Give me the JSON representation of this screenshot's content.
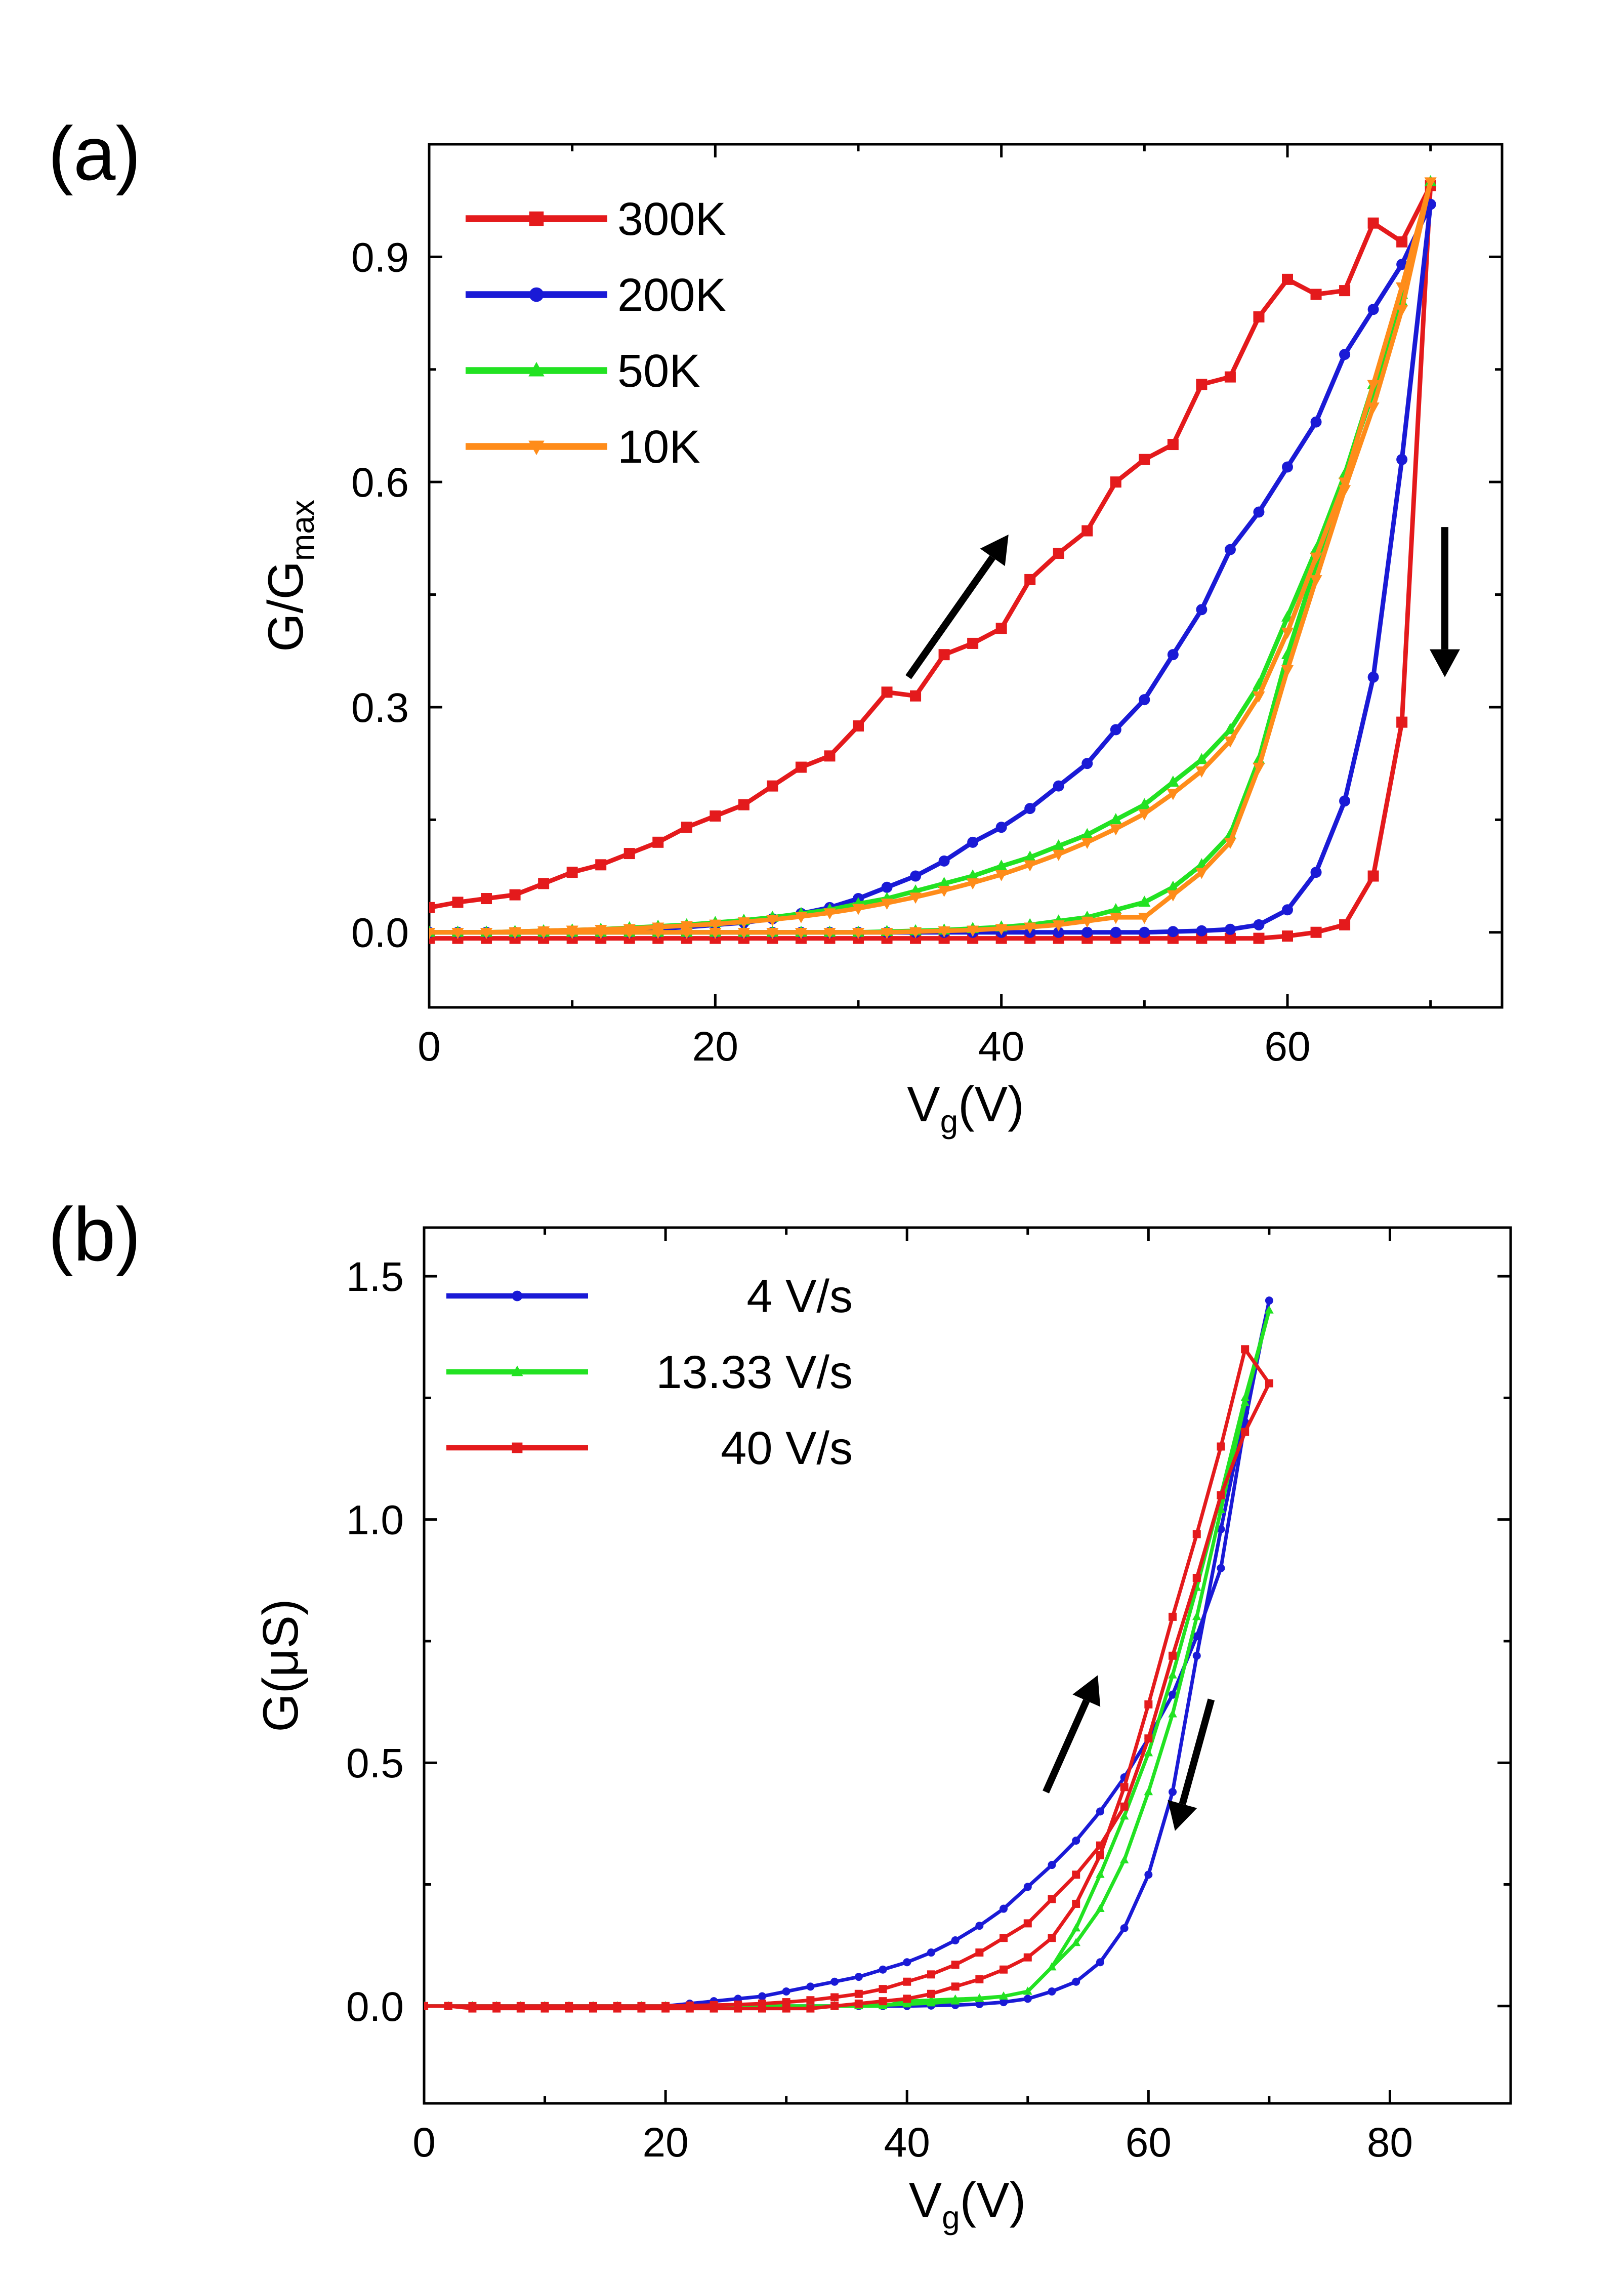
{
  "chart_data": [
    {
      "panel_label": "(a)",
      "type": "line",
      "xlabel": "V",
      "xlabel_sub": "g",
      "xlabel_suffix": "(V)",
      "ylabel": "G/G",
      "ylabel_sub": "max",
      "xlim": [
        0,
        75
      ],
      "ylim": [
        -0.1,
        1.05
      ],
      "xticks": [
        0,
        20,
        40,
        60
      ],
      "xtick_labels": [
        "0",
        "20",
        "40",
        "60"
      ],
      "yticks": [
        0.0,
        0.3,
        0.6,
        0.9
      ],
      "ytick_labels": [
        "0.0",
        "0.3",
        "0.6",
        "0.9"
      ],
      "legend_position": "top-left",
      "annotations": [
        "up-right arrow (forward sweep)",
        "down arrow (reverse sweep)"
      ],
      "series": [
        {
          "name": "300K",
          "color": "#e41a1c",
          "marker": "square",
          "x": [
            0,
            2,
            4,
            6,
            8,
            10,
            12,
            14,
            16,
            18,
            20,
            22,
            24,
            26,
            28,
            30,
            32,
            34,
            36,
            38,
            40,
            42,
            44,
            46,
            48,
            50,
            52,
            54,
            56,
            58,
            60,
            62,
            64,
            66,
            68,
            70,
            68,
            66,
            64,
            62,
            60,
            58,
            56,
            54,
            52,
            50,
            48,
            46,
            44,
            42,
            40,
            38,
            36,
            34,
            32,
            30,
            28,
            26,
            24,
            22,
            20,
            18,
            16,
            14,
            12,
            10,
            8,
            6,
            4,
            2,
            0
          ],
          "y": [
            0.033,
            0.04,
            0.045,
            0.05,
            0.065,
            0.08,
            0.09,
            0.105,
            0.12,
            0.14,
            0.155,
            0.17,
            0.195,
            0.22,
            0.235,
            0.275,
            0.32,
            0.315,
            0.37,
            0.385,
            0.405,
            0.47,
            0.505,
            0.535,
            0.6,
            0.63,
            0.65,
            0.73,
            0.74,
            0.82,
            0.87,
            0.85,
            0.855,
            0.945,
            0.92,
            0.995,
            0.28,
            0.075,
            0.01,
            0.0,
            -0.005,
            -0.008,
            -0.008,
            -0.008,
            -0.008,
            -0.008,
            -0.008,
            -0.008,
            -0.008,
            -0.008,
            -0.008,
            -0.008,
            -0.008,
            -0.008,
            -0.008,
            -0.008,
            -0.008,
            -0.008,
            -0.008,
            -0.008,
            -0.008,
            -0.008,
            -0.008,
            -0.008,
            -0.008,
            -0.008,
            -0.008,
            -0.008,
            -0.008,
            -0.008,
            -0.008
          ]
        },
        {
          "name": "200K",
          "color": "#1a1ad6",
          "marker": "circle",
          "x": [
            0,
            2,
            4,
            6,
            8,
            10,
            12,
            14,
            16,
            18,
            20,
            22,
            24,
            26,
            28,
            30,
            32,
            34,
            36,
            38,
            40,
            42,
            44,
            46,
            48,
            50,
            52,
            54,
            56,
            58,
            60,
            62,
            64,
            66,
            68,
            70,
            68,
            66,
            64,
            62,
            60,
            58,
            56,
            54,
            52,
            50,
            48,
            46,
            44,
            42,
            40,
            38,
            36,
            34,
            32,
            30,
            28,
            26,
            24,
            22,
            20,
            18,
            16,
            14,
            12,
            10,
            8,
            6,
            4,
            2,
            0
          ],
          "y": [
            0.0,
            0.0,
            0.0,
            0.0,
            0.0,
            0.001,
            0.002,
            0.003,
            0.005,
            0.007,
            0.01,
            0.013,
            0.018,
            0.025,
            0.033,
            0.045,
            0.06,
            0.075,
            0.095,
            0.12,
            0.14,
            0.165,
            0.195,
            0.225,
            0.27,
            0.31,
            0.37,
            0.43,
            0.51,
            0.56,
            0.62,
            0.68,
            0.77,
            0.83,
            0.89,
            0.97,
            0.63,
            0.34,
            0.175,
            0.08,
            0.03,
            0.01,
            0.004,
            0.002,
            0.001,
            0.0,
            0.0,
            0.0,
            0.0,
            0.0,
            0.0,
            0.0,
            0.0,
            0.0,
            0.0,
            0.0,
            0.0,
            0.0,
            0.0,
            0.0,
            0.0,
            0.0,
            0.0,
            0.0,
            0.0,
            0.0,
            0.0,
            0.0,
            0.0,
            0.0,
            0.0
          ]
        },
        {
          "name": "50K",
          "color": "#22e222",
          "marker": "triangle-up",
          "x": [
            0,
            2,
            4,
            6,
            8,
            10,
            12,
            14,
            16,
            18,
            20,
            22,
            24,
            26,
            28,
            30,
            32,
            34,
            36,
            38,
            40,
            42,
            44,
            46,
            48,
            50,
            52,
            54,
            56,
            58,
            60,
            62,
            64,
            66,
            68,
            70,
            68,
            66,
            64,
            62,
            60,
            58,
            56,
            54,
            52,
            50,
            48,
            46,
            44,
            42,
            40,
            38,
            36,
            34,
            32,
            30,
            28,
            26,
            24,
            22,
            20,
            18,
            16,
            14,
            12,
            10,
            8,
            6,
            4,
            2,
            0
          ],
          "y": [
            0.0,
            0.0,
            0.0,
            0.001,
            0.002,
            0.003,
            0.004,
            0.006,
            0.008,
            0.01,
            0.013,
            0.016,
            0.02,
            0.025,
            0.03,
            0.038,
            0.045,
            0.055,
            0.065,
            0.075,
            0.088,
            0.1,
            0.115,
            0.13,
            0.15,
            0.17,
            0.2,
            0.23,
            0.27,
            0.33,
            0.42,
            0.51,
            0.61,
            0.73,
            0.85,
            1.0,
            0.84,
            0.72,
            0.61,
            0.49,
            0.37,
            0.23,
            0.13,
            0.09,
            0.06,
            0.04,
            0.03,
            0.02,
            0.015,
            0.01,
            0.007,
            0.005,
            0.003,
            0.002,
            0.001,
            0.0,
            0.0,
            0.0,
            0.0,
            0.0,
            0.0,
            0.0,
            0.0,
            0.0,
            0.0,
            0.0,
            0.0,
            0.0,
            0.0,
            0.0,
            0.0
          ]
        },
        {
          "name": "10K",
          "color": "#ff8c1a",
          "marker": "triangle-down",
          "x": [
            0,
            2,
            4,
            6,
            8,
            10,
            12,
            14,
            16,
            18,
            20,
            22,
            24,
            26,
            28,
            30,
            32,
            34,
            36,
            38,
            40,
            42,
            44,
            46,
            48,
            50,
            52,
            54,
            56,
            58,
            60,
            62,
            64,
            66,
            68,
            70,
            68,
            66,
            64,
            62,
            60,
            58,
            56,
            54,
            52,
            50,
            48,
            46,
            44,
            42,
            40,
            38,
            36,
            34,
            32,
            30,
            28,
            26,
            24,
            22,
            20,
            18,
            16,
            14,
            12,
            10,
            8,
            6,
            4,
            2,
            0
          ],
          "y": [
            0.0,
            0.0,
            0.0,
            0.001,
            0.002,
            0.003,
            0.004,
            0.005,
            0.007,
            0.009,
            0.011,
            0.014,
            0.017,
            0.021,
            0.026,
            0.032,
            0.039,
            0.047,
            0.056,
            0.066,
            0.077,
            0.09,
            0.104,
            0.12,
            0.138,
            0.158,
            0.185,
            0.215,
            0.255,
            0.315,
            0.4,
            0.5,
            0.6,
            0.73,
            0.86,
            1.0,
            0.83,
            0.7,
            0.59,
            0.47,
            0.35,
            0.22,
            0.12,
            0.08,
            0.05,
            0.02,
            0.02,
            0.015,
            0.01,
            0.007,
            0.005,
            0.003,
            0.002,
            0.001,
            0.0,
            0.0,
            0.0,
            0.0,
            0.0,
            0.0,
            0.0,
            0.0,
            0.0,
            0.0,
            0.0,
            0.0,
            0.0,
            0.0,
            0.0,
            0.0,
            0.0
          ]
        }
      ]
    },
    {
      "panel_label": "(b)",
      "type": "line",
      "xlabel": "V",
      "xlabel_sub": "g",
      "xlabel_suffix": "(V)",
      "ylabel": "G(μS)",
      "xlim": [
        0,
        90
      ],
      "ylim": [
        -0.2,
        1.6
      ],
      "xticks": [
        0,
        20,
        40,
        60,
        80
      ],
      "xtick_labels": [
        "0",
        "20",
        "40",
        "60",
        "80"
      ],
      "yticks": [
        0.0,
        0.5,
        1.0,
        1.5
      ],
      "ytick_labels": [
        "0.0",
        "0.5",
        "1.0",
        "1.5"
      ],
      "legend_position": "top-left",
      "annotations": [
        "up arrow (forward sweep)",
        "down arrow (reverse sweep)"
      ],
      "series": [
        {
          "name": "4 V/s",
          "color": "#1a1ad6",
          "marker": "circle",
          "x": [
            0,
            2,
            4,
            6,
            8,
            10,
            12,
            14,
            16,
            18,
            20,
            22,
            24,
            26,
            28,
            30,
            32,
            34,
            36,
            38,
            40,
            42,
            44,
            46,
            48,
            50,
            52,
            54,
            56,
            58,
            60,
            62,
            64,
            66,
            68,
            70,
            68,
            66,
            64,
            62,
            60,
            58,
            56,
            54,
            52,
            50,
            48,
            46,
            44,
            42,
            40,
            38,
            36,
            34,
            32,
            30,
            28,
            26,
            24,
            22,
            20,
            18,
            16,
            14,
            12,
            10,
            8,
            6,
            4,
            2,
            0
          ],
          "y": [
            0.0,
            0.0,
            0.0,
            0.0,
            0.0,
            0.0,
            0.0,
            0.0,
            0.0,
            0.0,
            0.0,
            0.005,
            0.01,
            0.015,
            0.02,
            0.03,
            0.04,
            0.05,
            0.06,
            0.075,
            0.09,
            0.11,
            0.135,
            0.165,
            0.2,
            0.245,
            0.29,
            0.34,
            0.4,
            0.47,
            0.55,
            0.64,
            0.76,
            0.9,
            1.2,
            1.45,
            1.22,
            0.98,
            0.72,
            0.44,
            0.27,
            0.16,
            0.09,
            0.05,
            0.03,
            0.015,
            0.008,
            0.004,
            0.002,
            0.001,
            0.0,
            0.0,
            0.0,
            0.0,
            0.0,
            0.0,
            0.0,
            0.0,
            0.0,
            0.0,
            0.0,
            0.0,
            0.0,
            0.0,
            0.0,
            0.0,
            0.0,
            0.0,
            0.0,
            0.0,
            0.0
          ]
        },
        {
          "name": "13.33 V/s",
          "color": "#22e222",
          "marker": "triangle-up",
          "x": [
            0,
            2,
            4,
            6,
            8,
            10,
            12,
            14,
            16,
            18,
            20,
            22,
            24,
            26,
            28,
            30,
            32,
            34,
            36,
            38,
            40,
            42,
            44,
            46,
            48,
            50,
            52,
            54,
            56,
            58,
            60,
            62,
            64,
            66,
            68,
            70,
            68,
            66,
            64,
            62,
            60,
            58,
            56,
            54,
            52,
            50,
            48,
            46,
            44,
            42,
            40,
            38,
            36,
            34,
            32,
            30,
            28,
            26,
            24,
            22,
            20,
            18,
            16,
            14,
            12,
            10,
            8,
            6,
            4,
            2,
            0
          ],
          "y": [
            0.0,
            0.0,
            0.0,
            0.0,
            0.0,
            0.0,
            0.0,
            0.0,
            0.0,
            0.0,
            0.0,
            0.0,
            0.0,
            0.0,
            0.0,
            0.0,
            0.0,
            0.0,
            0.0,
            0.0,
            0.01,
            0.012,
            0.014,
            0.016,
            0.02,
            0.03,
            0.08,
            0.16,
            0.27,
            0.39,
            0.52,
            0.68,
            0.86,
            1.05,
            1.25,
            1.43,
            1.24,
            1.02,
            0.8,
            0.6,
            0.44,
            0.3,
            0.2,
            0.13,
            0.08,
            0.03,
            0.02,
            0.015,
            0.01,
            0.006,
            0.004,
            0.002,
            0.001,
            0.0,
            0.0,
            0.0,
            0.0,
            0.0,
            0.0,
            0.0,
            0.0,
            0.0,
            0.0,
            0.0,
            0.0,
            0.0,
            0.0,
            0.0,
            0.0,
            0.0,
            0.0
          ]
        },
        {
          "name": "40 V/s",
          "color": "#e41a1c",
          "marker": "square",
          "x": [
            0,
            2,
            4,
            6,
            8,
            10,
            12,
            14,
            16,
            18,
            20,
            22,
            24,
            26,
            28,
            30,
            32,
            34,
            36,
            38,
            40,
            42,
            44,
            46,
            48,
            50,
            52,
            54,
            56,
            58,
            60,
            62,
            64,
            66,
            68,
            70,
            68,
            66,
            64,
            62,
            60,
            58,
            56,
            54,
            52,
            50,
            48,
            46,
            44,
            42,
            40,
            38,
            36,
            34,
            32,
            30,
            28,
            26,
            24,
            22,
            20,
            18,
            16,
            14,
            12,
            10,
            8,
            6,
            4,
            2,
            0
          ],
          "y": [
            0.0,
            0.0,
            -0.005,
            -0.005,
            -0.005,
            -0.005,
            -0.005,
            -0.005,
            -0.005,
            -0.005,
            -0.005,
            -0.005,
            -0.005,
            -0.005,
            -0.005,
            -0.005,
            -0.005,
            0.0,
            0.005,
            0.01,
            0.015,
            0.025,
            0.04,
            0.055,
            0.075,
            0.1,
            0.14,
            0.21,
            0.31,
            0.45,
            0.62,
            0.8,
            0.97,
            1.15,
            1.35,
            1.28,
            1.18,
            1.05,
            0.88,
            0.72,
            0.55,
            0.41,
            0.33,
            0.27,
            0.22,
            0.17,
            0.14,
            0.11,
            0.085,
            0.065,
            0.05,
            0.035,
            0.025,
            0.018,
            0.012,
            0.008,
            0.005,
            0.003,
            0.002,
            0.001,
            0.0,
            0.0,
            0.0,
            0.0,
            0.0,
            0.0,
            0.0,
            0.0,
            0.0,
            0.0,
            0.0
          ]
        }
      ]
    }
  ]
}
